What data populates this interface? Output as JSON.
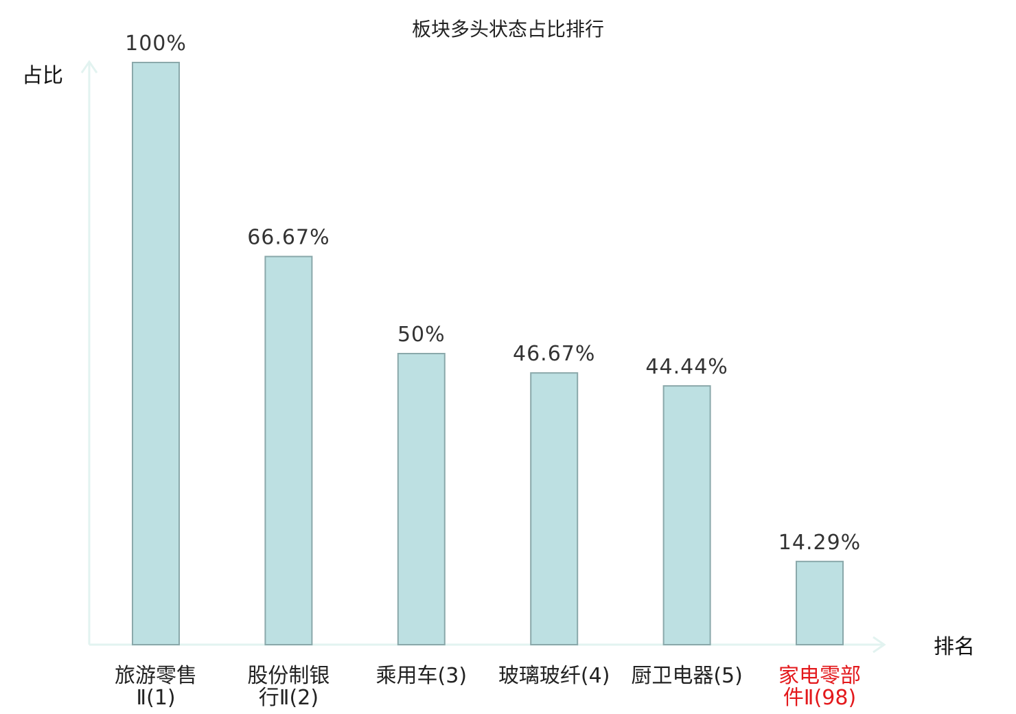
{
  "colors": {
    "bar_fill": "#bde0e2",
    "bar_stroke": "#8aa8aa",
    "axis": "#e2f3f0",
    "highlight": "#e3191c",
    "text": "#222222"
  },
  "chart_data": {
    "type": "bar",
    "title": "板块多头状态占比排行",
    "xlabel": "排名",
    "ylabel": "占比",
    "ylim": [
      0,
      100
    ],
    "grid": false,
    "categories": [
      [
        "旅游零售",
        "Ⅱ(1)"
      ],
      [
        "股份制银",
        "行Ⅱ(2)"
      ],
      [
        "乘用车(3)"
      ],
      [
        "玻璃玻纤(4)"
      ],
      [
        "厨卫电器(5)"
      ],
      [
        "家电零部",
        "件Ⅱ(98)"
      ]
    ],
    "highlight_index": 5,
    "values": [
      100,
      66.67,
      50,
      46.67,
      44.44,
      14.29
    ],
    "value_labels": [
      "100%",
      "66.67%",
      "50%",
      "46.67%",
      "44.44%",
      "14.29%"
    ]
  }
}
